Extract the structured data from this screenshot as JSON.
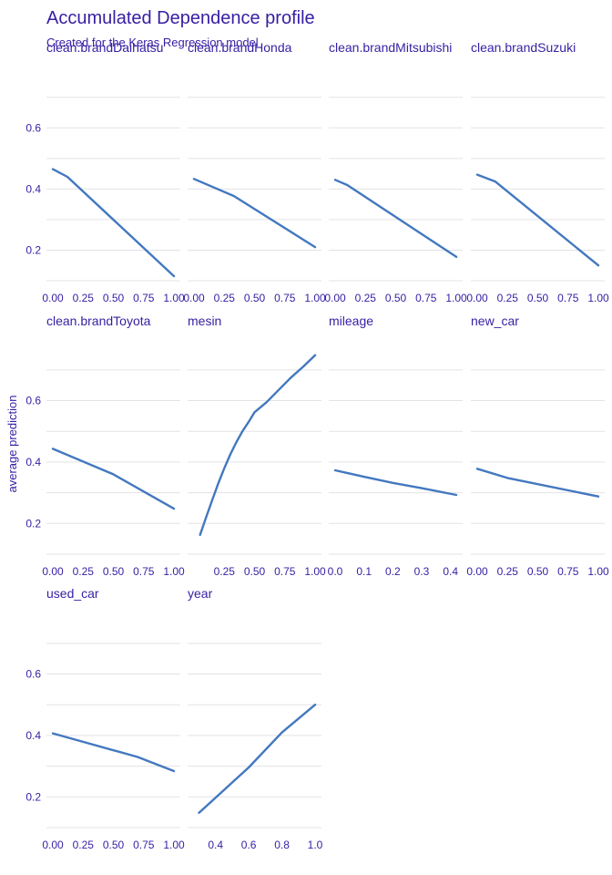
{
  "chart_data": {
    "type": "line",
    "title": "Accumulated Dependence profile",
    "subtitle": "Created for the Keras Regression model",
    "ylabel": "average prediction",
    "ylim": [
      0.1,
      0.75
    ],
    "yticks": [
      0.2,
      0.4,
      0.6
    ],
    "line_color": "#4378bf",
    "grid": true,
    "panels": [
      {
        "name": "clean.brandDaihatsu",
        "xlim": [
          0,
          1
        ],
        "xticks": [
          "0.00",
          "0.25",
          "0.50",
          "0.75",
          "1.00"
        ],
        "x": [
          0,
          0.12,
          1.0
        ],
        "y": [
          0.465,
          0.44,
          0.115
        ]
      },
      {
        "name": "clean.brandHonda",
        "xlim": [
          0,
          1
        ],
        "xticks": [
          "0.00",
          "0.25",
          "0.50",
          "0.75",
          "1.00"
        ],
        "x": [
          0,
          0.33,
          1.0
        ],
        "y": [
          0.433,
          0.377,
          0.21
        ]
      },
      {
        "name": "clean.brandMitsubishi",
        "xlim": [
          0,
          1
        ],
        "xticks": [
          "0.00",
          "0.25",
          "0.50",
          "0.75",
          "1.00"
        ],
        "x": [
          0,
          0.1,
          1.0
        ],
        "y": [
          0.43,
          0.413,
          0.178
        ]
      },
      {
        "name": "clean.brandSuzuki",
        "xlim": [
          0,
          1
        ],
        "xticks": [
          "0.00",
          "0.25",
          "0.50",
          "0.75",
          "1.00"
        ],
        "x": [
          0,
          0.15,
          1.0
        ],
        "y": [
          0.447,
          0.424,
          0.15
        ]
      },
      {
        "name": "clean.brandToyota",
        "xlim": [
          0,
          1
        ],
        "xticks": [
          "0.00",
          "0.25",
          "0.50",
          "0.75",
          "1.00"
        ],
        "x": [
          0,
          0.5,
          1.0
        ],
        "y": [
          0.443,
          0.36,
          0.248
        ]
      },
      {
        "name": "mesin",
        "xlim": [
          0,
          1
        ],
        "xticks": [
          "0.25",
          "0.50",
          "0.75",
          "1.00"
        ],
        "xtick_values": [
          0.25,
          0.5,
          0.75,
          1.0
        ],
        "x": [
          0.05,
          0.1,
          0.15,
          0.2,
          0.25,
          0.3,
          0.35,
          0.4,
          0.45,
          0.5,
          0.6,
          0.7,
          0.8,
          0.9,
          1.0
        ],
        "y": [
          0.163,
          0.22,
          0.275,
          0.33,
          0.38,
          0.425,
          0.465,
          0.5,
          0.53,
          0.562,
          0.595,
          0.635,
          0.675,
          0.71,
          0.748
        ]
      },
      {
        "name": "mileage",
        "xlim": [
          0,
          0.42
        ],
        "xticks": [
          "0.0",
          "0.1",
          "0.2",
          "0.3",
          "0.4"
        ],
        "xtick_values": [
          0,
          0.1,
          0.2,
          0.3,
          0.4
        ],
        "x": [
          0,
          0.1,
          0.2,
          0.3,
          0.42
        ],
        "y": [
          0.373,
          0.352,
          0.332,
          0.315,
          0.293
        ]
      },
      {
        "name": "new_car",
        "xlim": [
          0,
          1
        ],
        "xticks": [
          "0.00",
          "0.25",
          "0.50",
          "0.75",
          "1.00"
        ],
        "x": [
          0,
          0.25,
          1.0
        ],
        "y": [
          0.378,
          0.348,
          0.288
        ]
      },
      {
        "name": "used_car",
        "xlim": [
          0,
          1
        ],
        "xticks": [
          "0.00",
          "0.25",
          "0.50",
          "0.75",
          "1.00"
        ],
        "x": [
          0,
          0.7,
          1.0
        ],
        "y": [
          0.407,
          0.33,
          0.284
        ]
      },
      {
        "name": "year",
        "xlim": [
          0.27,
          1.0
        ],
        "xticks": [
          "0.4",
          "0.6",
          "0.8",
          "1.0"
        ],
        "xtick_values": [
          0.4,
          0.6,
          0.8,
          1.0
        ],
        "x": [
          0.3,
          0.6,
          0.8,
          1.0
        ],
        "y": [
          0.148,
          0.296,
          0.41,
          0.5
        ]
      }
    ]
  }
}
